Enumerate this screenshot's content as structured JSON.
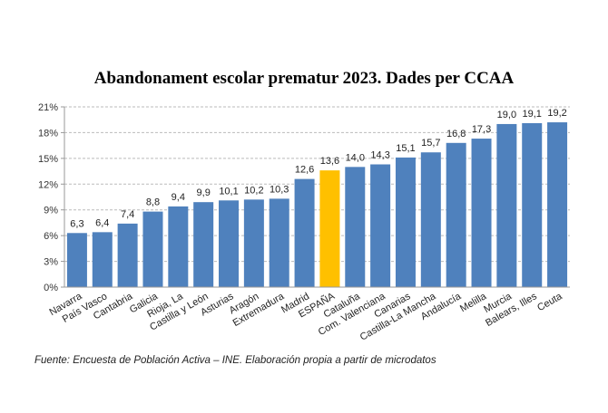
{
  "chart_data": {
    "type": "bar",
    "title": "Abandonament escolar prematur 2023. Dades per CCAA",
    "source": "Fuente: Encuesta de Población Activa – INE. Elaboración propia a partir de microdatos",
    "categories": [
      "Navarra",
      "País Vasco",
      "Cantabria",
      "Galicia",
      "Rioja, La",
      "Castilla y León",
      "Asturias",
      "Aragón",
      "Extremadura",
      "Madrid",
      "ESPAÑA",
      "Cataluña",
      "Com. Valenciana",
      "Canarias",
      "Castilla-La Mancha",
      "Andalucía",
      "Melilla",
      "Murcia",
      "Balears, Illes",
      "Ceuta"
    ],
    "values": [
      6.3,
      6.4,
      7.4,
      8.8,
      9.4,
      9.9,
      10.1,
      10.2,
      10.3,
      12.6,
      13.6,
      14.0,
      14.3,
      15.1,
      15.7,
      16.8,
      17.3,
      19.0,
      19.1,
      19.2
    ],
    "data_labels": [
      "6,3",
      "6,4",
      "7,4",
      "8,8",
      "9,4",
      "9,9",
      "10,1",
      "10,2",
      "10,3",
      "12,6",
      "13,6",
      "14,0",
      "14,3",
      "15,1",
      "15,7",
      "16,8",
      "17,3",
      "19,0",
      "19,1",
      "19,2"
    ],
    "yticks": [
      "0%",
      "3%",
      "6%",
      "9%",
      "12%",
      "15%",
      "18%",
      "21%"
    ],
    "ylim": [
      0,
      21
    ],
    "grid": true,
    "colors": {
      "default": "#4F81BD",
      "highlight": "#FFC000"
    },
    "highlight_category": "ESPAÑA"
  }
}
